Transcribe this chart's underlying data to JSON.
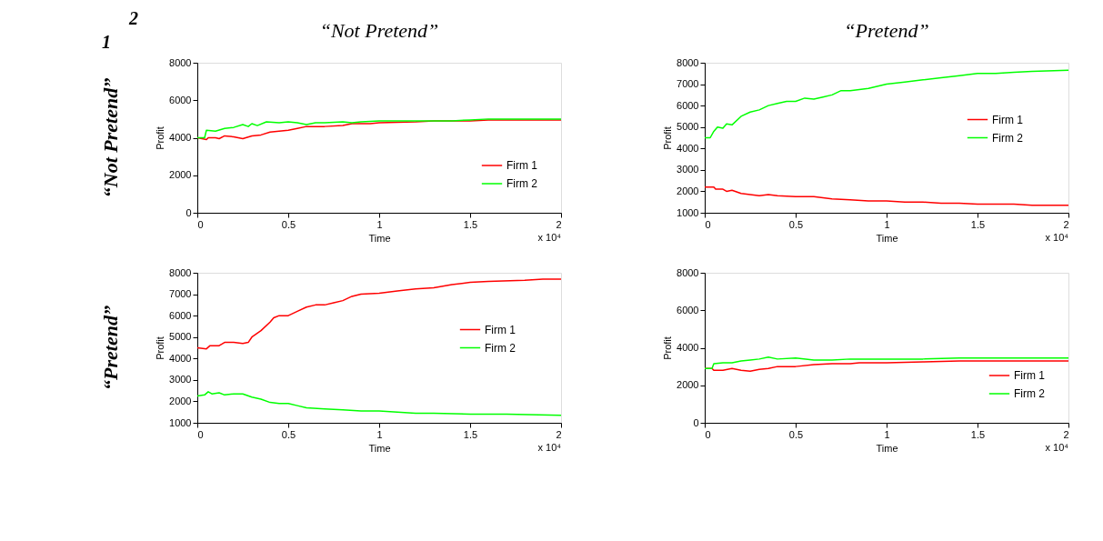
{
  "chart_data": [
    {
      "type": "line",
      "title": "“Not Pretend”",
      "xlabel": "Time",
      "ylabel": "Profit",
      "legend": "bottom right",
      "annotations": [
        "x 10⁴",
        "“Not Pretend”",
        "2",
        "1"
      ],
      "xlim": [
        0,
        2
      ],
      "xticks": [
        0,
        0.5,
        1,
        1.5,
        2
      ],
      "ylim": [
        0,
        8000
      ],
      "yticks": [
        0,
        2000,
        4000,
        6000,
        8000
      ],
      "series": [
        {
          "name": "Firm 1",
          "color": "#ff0000",
          "x": [
            0,
            0.05,
            0.06,
            0.1,
            0.12,
            0.15,
            0.2,
            0.25,
            0.3,
            0.35,
            0.4,
            0.45,
            0.5,
            0.55,
            0.6,
            0.7,
            0.8,
            0.85,
            0.95,
            1.0,
            1.2,
            1.3,
            1.4,
            1.5,
            1.6,
            1.8,
            2.0
          ],
          "values": [
            4000,
            3900,
            4000,
            4000,
            3950,
            4100,
            4050,
            3950,
            4100,
            4150,
            4300,
            4350,
            4400,
            4500,
            4600,
            4600,
            4650,
            4750,
            4750,
            4800,
            4850,
            4900,
            4900,
            4900,
            4950,
            4950,
            4950
          ]
        },
        {
          "name": "Firm 2",
          "color": "#00ff00",
          "x": [
            0,
            0.04,
            0.05,
            0.1,
            0.15,
            0.2,
            0.25,
            0.28,
            0.3,
            0.33,
            0.38,
            0.45,
            0.5,
            0.55,
            0.6,
            0.65,
            0.7,
            0.8,
            0.85,
            0.9,
            1.0,
            1.2,
            1.4,
            1.5,
            1.6,
            2.0
          ],
          "values": [
            4000,
            4000,
            4400,
            4350,
            4500,
            4550,
            4700,
            4600,
            4750,
            4650,
            4850,
            4800,
            4850,
            4800,
            4700,
            4800,
            4800,
            4850,
            4800,
            4850,
            4900,
            4900,
            4900,
            4950,
            5000,
            5000
          ]
        }
      ]
    },
    {
      "type": "line",
      "title": "“Pretend”",
      "xlabel": "Time",
      "ylabel": "Profit",
      "legend": "right",
      "annotations": [
        "x 10⁴"
      ],
      "xlim": [
        0,
        2
      ],
      "xticks": [
        0,
        0.5,
        1,
        1.5,
        2
      ],
      "ylim": [
        1000,
        8000
      ],
      "yticks": [
        1000,
        2000,
        3000,
        4000,
        5000,
        6000,
        7000,
        8000
      ],
      "series": [
        {
          "name": "Firm 1",
          "color": "#ff0000",
          "x": [
            0,
            0.05,
            0.06,
            0.1,
            0.12,
            0.15,
            0.2,
            0.25,
            0.3,
            0.35,
            0.4,
            0.5,
            0.6,
            0.7,
            0.8,
            0.9,
            1.0,
            1.1,
            1.2,
            1.3,
            1.4,
            1.5,
            1.7,
            1.8,
            2.0
          ],
          "values": [
            2200,
            2200,
            2100,
            2100,
            2000,
            2050,
            1900,
            1850,
            1800,
            1850,
            1800,
            1750,
            1750,
            1650,
            1600,
            1550,
            1550,
            1500,
            1500,
            1450,
            1450,
            1400,
            1400,
            1350,
            1350
          ]
        },
        {
          "name": "Firm 2",
          "color": "#00ff00",
          "x": [
            0,
            0.03,
            0.05,
            0.07,
            0.1,
            0.12,
            0.15,
            0.2,
            0.25,
            0.3,
            0.35,
            0.4,
            0.45,
            0.5,
            0.55,
            0.6,
            0.65,
            0.7,
            0.75,
            0.8,
            0.9,
            1.0,
            1.1,
            1.2,
            1.3,
            1.4,
            1.5,
            1.6,
            1.7,
            1.8,
            2.0
          ],
          "values": [
            4500,
            4500,
            4800,
            5000,
            4950,
            5150,
            5100,
            5500,
            5700,
            5800,
            6000,
            6100,
            6200,
            6200,
            6350,
            6300,
            6400,
            6500,
            6700,
            6700,
            6800,
            7000,
            7100,
            7200,
            7300,
            7400,
            7500,
            7500,
            7550,
            7600,
            7650
          ]
        }
      ]
    },
    {
      "type": "line",
      "xlabel": "Time",
      "ylabel": "Profit",
      "legend": "right",
      "annotations": [
        "x 10⁴",
        "“Pretend”"
      ],
      "xlim": [
        0,
        2
      ],
      "xticks": [
        0,
        0.5,
        1,
        1.5,
        2
      ],
      "ylim": [
        1000,
        8000
      ],
      "yticks": [
        1000,
        2000,
        3000,
        4000,
        5000,
        6000,
        7000,
        8000
      ],
      "series": [
        {
          "name": "Firm 1",
          "color": "#ff0000",
          "x": [
            0,
            0.05,
            0.07,
            0.12,
            0.15,
            0.2,
            0.25,
            0.28,
            0.3,
            0.35,
            0.4,
            0.42,
            0.45,
            0.5,
            0.55,
            0.6,
            0.65,
            0.7,
            0.75,
            0.8,
            0.85,
            0.9,
            1.0,
            1.1,
            1.2,
            1.3,
            1.4,
            1.5,
            1.6,
            1.8,
            1.9,
            2.0
          ],
          "values": [
            4500,
            4450,
            4600,
            4600,
            4750,
            4750,
            4700,
            4750,
            5000,
            5300,
            5700,
            5900,
            6000,
            6000,
            6200,
            6400,
            6500,
            6500,
            6600,
            6700,
            6900,
            7000,
            7050,
            7150,
            7250,
            7300,
            7450,
            7550,
            7600,
            7650,
            7700,
            7700
          ]
        },
        {
          "name": "Firm 2",
          "color": "#00ff00",
          "x": [
            0,
            0.04,
            0.06,
            0.08,
            0.12,
            0.15,
            0.2,
            0.25,
            0.3,
            0.35,
            0.4,
            0.45,
            0.5,
            0.55,
            0.6,
            0.7,
            0.8,
            0.9,
            1.0,
            1.1,
            1.2,
            1.3,
            1.5,
            1.7,
            2.0
          ],
          "values": [
            2250,
            2300,
            2450,
            2350,
            2400,
            2300,
            2350,
            2350,
            2200,
            2100,
            1950,
            1900,
            1900,
            1800,
            1700,
            1650,
            1600,
            1550,
            1550,
            1500,
            1450,
            1450,
            1400,
            1400,
            1350
          ]
        }
      ]
    },
    {
      "type": "line",
      "xlabel": "Time",
      "ylabel": "Profit",
      "legend": "bottom right",
      "annotations": [
        "x 10⁴"
      ],
      "xlim": [
        0,
        2
      ],
      "xticks": [
        0,
        0.5,
        1,
        1.5,
        2
      ],
      "ylim": [
        0,
        8000
      ],
      "yticks": [
        0,
        2000,
        4000,
        6000,
        8000
      ],
      "series": [
        {
          "name": "Firm 1",
          "color": "#ff0000",
          "x": [
            0,
            0.04,
            0.05,
            0.1,
            0.15,
            0.2,
            0.25,
            0.3,
            0.35,
            0.4,
            0.5,
            0.6,
            0.7,
            0.8,
            0.85,
            1.0,
            1.2,
            1.4,
            1.6,
            1.8,
            2.0
          ],
          "values": [
            2900,
            2900,
            2800,
            2800,
            2900,
            2800,
            2750,
            2850,
            2900,
            3000,
            3000,
            3100,
            3150,
            3150,
            3200,
            3200,
            3250,
            3300,
            3300,
            3300,
            3300
          ]
        },
        {
          "name": "Firm 2",
          "color": "#00ff00",
          "x": [
            0,
            0.04,
            0.05,
            0.1,
            0.15,
            0.2,
            0.25,
            0.3,
            0.35,
            0.4,
            0.5,
            0.6,
            0.7,
            0.8,
            1.0,
            1.2,
            1.4,
            1.6,
            1.8,
            2.0
          ],
          "values": [
            2900,
            2900,
            3150,
            3200,
            3200,
            3300,
            3350,
            3400,
            3500,
            3400,
            3450,
            3350,
            3350,
            3400,
            3400,
            3400,
            3450,
            3450,
            3450,
            3450
          ]
        }
      ]
    }
  ]
}
